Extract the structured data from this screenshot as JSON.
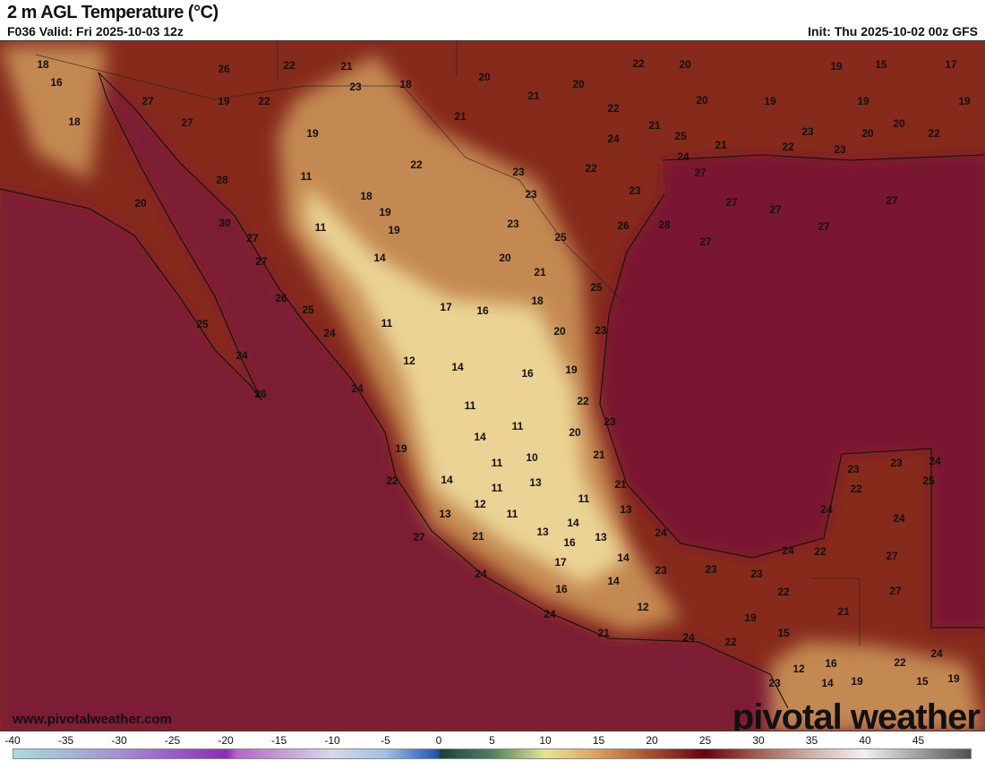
{
  "header": {
    "title": "2 m AGL Temperature (°C)",
    "valid": "F036 Valid: Fri 2025-10-03 12z",
    "init": "Init: Thu 2025-10-02 00z GFS"
  },
  "footer": {
    "url": "www.pivotalweather.com",
    "brand": "pivotal weather"
  },
  "colorbar": {
    "unit": "°C",
    "ticks": [
      "-40",
      "-35",
      "-30",
      "-25",
      "-20",
      "-15",
      "-10",
      "-5",
      "0",
      "5",
      "10",
      "15",
      "20",
      "25",
      "30",
      "35",
      "40",
      "45"
    ],
    "range": [
      -40,
      50
    ],
    "stops": [
      [
        "-40",
        "#a8dcdc"
      ],
      [
        "-30",
        "#a590d0"
      ],
      [
        "-20",
        "#8a2cb8"
      ],
      [
        "-19",
        "#b565c5"
      ],
      [
        "-10",
        "#d5dbe8"
      ],
      [
        "-5",
        "#9fc0e0"
      ],
      [
        "0",
        "#2050b0"
      ],
      [
        "0.1",
        "#1e4040"
      ],
      [
        "5",
        "#508060"
      ],
      [
        "10",
        "#e6e495"
      ],
      [
        "15",
        "#d8a060"
      ],
      [
        "20",
        "#a05030"
      ],
      [
        "25",
        "#6e0010"
      ],
      [
        "30",
        "#a06050"
      ],
      [
        "35",
        "#d0b0a8"
      ],
      [
        "40",
        "#f2f2f2"
      ],
      [
        "50",
        "#505050"
      ]
    ]
  },
  "colors": {
    "pacific": "#7d1a35",
    "gulf": "#791732",
    "land": "#862a1c",
    "plateau": "#cf9a5c",
    "highland": "#efdc9c"
  },
  "station_values": [
    "18",
    "16",
    "26",
    "22",
    "21",
    "23",
    "18",
    "20",
    "22",
    "20",
    "19",
    "15",
    "17",
    "27",
    "19",
    "22",
    "21",
    "20",
    "22",
    "20",
    "19",
    "19",
    "19",
    "18",
    "27",
    "21",
    "21",
    "24",
    "25",
    "21",
    "23",
    "20",
    "20",
    "22",
    "22",
    "23",
    "19",
    "22",
    "24",
    "27",
    "22",
    "23",
    "28",
    "11",
    "18",
    "23",
    "23",
    "20",
    "19",
    "19",
    "11",
    "23",
    "30",
    "27",
    "26",
    "28",
    "27",
    "27",
    "27",
    "27",
    "27",
    "25",
    "27",
    "14",
    "20",
    "21",
    "26",
    "18",
    "25",
    "17",
    "16",
    "25",
    "11",
    "25",
    "24",
    "20",
    "23",
    "24",
    "12",
    "14",
    "16",
    "19",
    "26",
    "24",
    "22",
    "11",
    "23",
    "11",
    "20",
    "14",
    "19",
    "11",
    "10",
    "21",
    "22",
    "14",
    "11",
    "13",
    "21",
    "11",
    "13",
    "12",
    "11",
    "13",
    "14",
    "13",
    "13",
    "16",
    "21",
    "27",
    "24",
    "17",
    "14",
    "23",
    "24",
    "14",
    "16",
    "23",
    "23",
    "24",
    "22",
    "12",
    "24",
    "22",
    "19",
    "21",
    "21",
    "24",
    "22",
    "15",
    "23",
    "23",
    "24",
    "22",
    "25",
    "24",
    "24",
    "27",
    "27",
    "24",
    "22",
    "12",
    "16",
    "19",
    "23",
    "14",
    "15",
    "19"
  ]
}
